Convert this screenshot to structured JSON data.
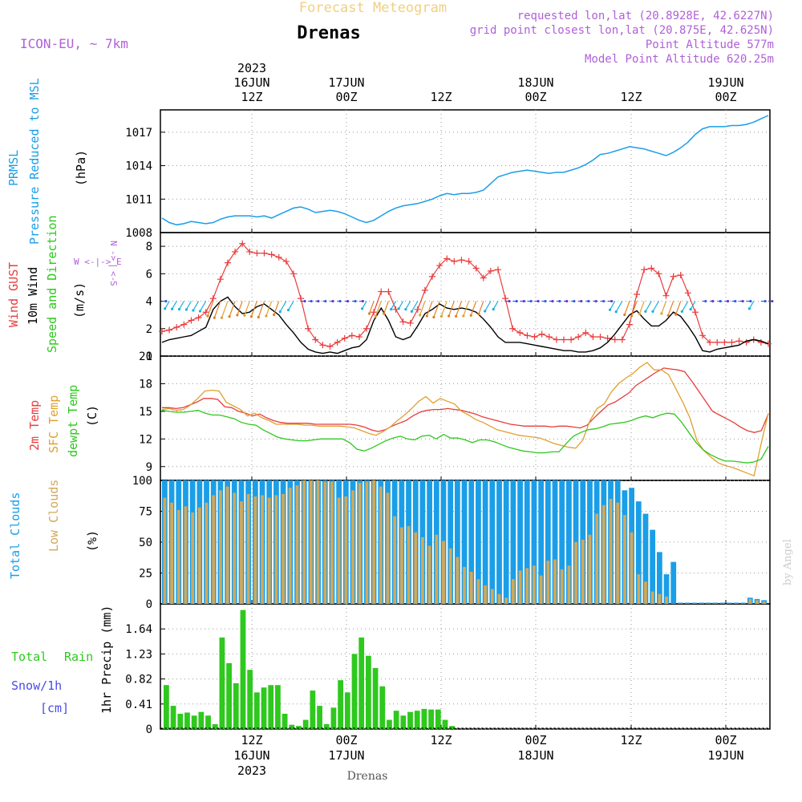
{
  "header": {
    "product": "Forecast Meteogram",
    "location": "Drenas",
    "model": "ICON-EU, ~ 7km",
    "requested": "requested lon,lat (20.8928E, 42.6227N)",
    "grid": "grid point closest lon,lat (20.875E, 42.625N)",
    "point_alt": "Point Altitude 577m",
    "model_alt": "Model Point Altitude 620.25m",
    "footer_location": "Drenas",
    "watermark": "by Angel"
  },
  "time_axis": {
    "top": [
      {
        "line1": "2023",
        "line2": "16JUN",
        "line3": "12Z"
      },
      {
        "line1": "",
        "line2": "17JUN",
        "line3": "00Z"
      },
      {
        "line1": "",
        "line2": "",
        "line3": "12Z"
      },
      {
        "line1": "",
        "line2": "18JUN",
        "line3": "00Z"
      },
      {
        "line1": "",
        "line2": "",
        "line3": "12Z"
      },
      {
        "line1": "",
        "line2": "19JUN",
        "line3": "00Z"
      }
    ],
    "bottom": [
      {
        "line1": "12Z",
        "line2": "16JUN",
        "line3": "2023"
      },
      {
        "line1": "00Z",
        "line2": "17JUN",
        "line3": ""
      },
      {
        "line1": "12Z",
        "line2": "",
        "line3": ""
      },
      {
        "line1": "00Z",
        "line2": "18JUN",
        "line3": ""
      },
      {
        "line1": "12Z",
        "line2": "",
        "line3": ""
      },
      {
        "line1": "00Z",
        "line2": "19JUN",
        "line3": ""
      }
    ]
  },
  "panel_labels": {
    "pressure": {
      "l1": "PRMSL",
      "l2": "Pressure Reduced to MSL",
      "unit": "(hPa)"
    },
    "wind": {
      "l1": "Wind GUST",
      "l2": "10m Wind",
      "l3": "Speed and Direction",
      "unit": "(m/s)",
      "compass_n": "N",
      "compass_s": "S",
      "compass_we": "W <-|-> E",
      "compass_v1": "<-",
      "compass_v2": "|",
      "compass_v3": "->"
    },
    "temp": {
      "l1": "2m Temp",
      "l2": "SFC Temp",
      "l3": "dewpt Temp",
      "unit": "(C)"
    },
    "clouds": {
      "l1": "Total Clouds",
      "l2": "Low Clouds",
      "unit": "(%)"
    },
    "precip": {
      "l1": "Total",
      "l1b": "Rain",
      "l2": "Snow/1h",
      "l3": "[cm]",
      "unit": "1hr Precip (mm)"
    }
  },
  "colors": {
    "pressure": "#1a9ee8",
    "gust": "#e83c3c",
    "wind": "#000000",
    "sfc": "#e0a030",
    "dewpt": "#2ec81e",
    "total_cloud": "#1a9ee8",
    "low_cloud": "#d2a85a",
    "precip": "#2ec81e",
    "purple": "#b060d8",
    "snow": "#4a4ae8"
  },
  "chart_data": [
    {
      "type": "line",
      "title": "PRMSL Pressure Reduced to MSL",
      "ylabel": "(hPa)",
      "ylim": [
        1008,
        1019
      ],
      "yticks": [
        1008,
        1011,
        1014,
        1017
      ],
      "series": [
        {
          "name": "PRMSL",
          "values": [
            1009.3,
            1008.9,
            1008.7,
            1008.8,
            1009.0,
            1008.9,
            1008.8,
            1008.9,
            1009.2,
            1009.4,
            1009.5,
            1009.5,
            1009.5,
            1009.4,
            1009.5,
            1009.3,
            1009.6,
            1009.9,
            1010.2,
            1010.3,
            1010.1,
            1009.8,
            1009.9,
            1010.0,
            1009.9,
            1009.7,
            1009.4,
            1009.1,
            1008.9,
            1009.1,
            1009.5,
            1009.9,
            1010.2,
            1010.4,
            1010.5,
            1010.6,
            1010.8,
            1011.0,
            1011.3,
            1011.5,
            1011.4,
            1011.5,
            1011.5,
            1011.6,
            1011.8,
            1012.4,
            1013.0,
            1013.2,
            1013.4,
            1013.5,
            1013.6,
            1013.5,
            1013.4,
            1013.3,
            1013.4,
            1013.4,
            1013.6,
            1013.8,
            1014.1,
            1014.5,
            1015.0,
            1015.1,
            1015.3,
            1015.5,
            1015.7,
            1015.6,
            1015.5,
            1015.3,
            1015.1,
            1014.9,
            1015.2,
            1015.6,
            1016.1,
            1016.8,
            1017.3,
            1017.5,
            1017.5,
            1017.5,
            1017.6,
            1017.6,
            1017.7,
            1017.9,
            1018.2,
            1018.5
          ]
        }
      ]
    },
    {
      "type": "line",
      "title": "Wind GUST / 10m Wind Speed and Direction",
      "ylabel": "(m/s)",
      "ylim": [
        0,
        9
      ],
      "yticks": [
        0,
        2,
        4,
        6,
        8
      ],
      "series": [
        {
          "name": "Wind GUST",
          "values": [
            1.8,
            1.9,
            2.1,
            2.3,
            2.6,
            2.8,
            3.2,
            4.2,
            5.6,
            6.8,
            7.6,
            8.2,
            7.6,
            7.5,
            7.5,
            7.4,
            7.2,
            6.9,
            6.0,
            4.2,
            2.0,
            1.2,
            0.8,
            0.7,
            1.0,
            1.3,
            1.5,
            1.4,
            2.0,
            3.2,
            4.7,
            4.7,
            3.4,
            2.5,
            2.4,
            3.4,
            4.8,
            5.8,
            6.6,
            7.1,
            6.9,
            7.0,
            6.9,
            6.4,
            5.7,
            6.2,
            6.3,
            4.2,
            2.0,
            1.7,
            1.5,
            1.4,
            1.6,
            1.4,
            1.2,
            1.2,
            1.2,
            1.4,
            1.7,
            1.4,
            1.4,
            1.3,
            1.2,
            1.2,
            2.3,
            4.5,
            6.3,
            6.4,
            6.0,
            4.4,
            5.8,
            5.9,
            4.6,
            3.2,
            1.5,
            1.0,
            1.0,
            1.0,
            1.0,
            1.1,
            1.0,
            1.2,
            1.0,
            0.9
          ]
        },
        {
          "name": "10m Wind",
          "values": [
            1.0,
            1.2,
            1.3,
            1.4,
            1.5,
            1.8,
            2.1,
            3.4,
            4.0,
            4.3,
            3.6,
            3.1,
            3.2,
            3.6,
            3.8,
            3.4,
            3.0,
            2.3,
            1.7,
            1.0,
            0.5,
            0.3,
            0.2,
            0.3,
            0.2,
            0.4,
            0.6,
            0.7,
            1.2,
            2.6,
            3.5,
            2.6,
            1.4,
            1.2,
            1.4,
            2.2,
            3.1,
            3.4,
            3.8,
            3.5,
            3.4,
            3.5,
            3.4,
            3.2,
            2.7,
            2.1,
            1.4,
            1.0,
            1.0,
            1.0,
            0.9,
            0.8,
            0.7,
            0.6,
            0.5,
            0.4,
            0.4,
            0.3,
            0.3,
            0.4,
            0.6,
            1.0,
            1.6,
            2.3,
            3.0,
            3.3,
            2.7,
            2.2,
            2.2,
            2.6,
            3.2,
            2.9,
            2.2,
            1.4,
            0.4,
            0.3,
            0.5,
            0.6,
            0.7,
            0.8,
            1.1,
            1.2,
            1.1,
            0.9
          ]
        }
      ]
    },
    {
      "type": "line",
      "title": "2m Temp / SFC Temp / dewpt Temp",
      "ylabel": "(C)",
      "ylim": [
        7.5,
        21
      ],
      "yticks": [
        9,
        12,
        15,
        18,
        21
      ],
      "series": [
        {
          "name": "2m Temp",
          "values": [
            15.4,
            15.4,
            15.3,
            15.4,
            15.7,
            16.0,
            16.4,
            16.4,
            16.3,
            15.5,
            15.4,
            15.0,
            14.8,
            14.5,
            14.7,
            14.3,
            14.0,
            13.8,
            13.7,
            13.7,
            13.7,
            13.7,
            13.6,
            13.6,
            13.6,
            13.6,
            13.6,
            13.6,
            13.5,
            13.3,
            13.0,
            12.8,
            13.0,
            13.4,
            13.7,
            14.0,
            14.5,
            14.9,
            15.1,
            15.2,
            15.2,
            15.3,
            15.2,
            15.1,
            14.9,
            14.7,
            14.4,
            14.2,
            14.0,
            13.8,
            13.6,
            13.5,
            13.4,
            13.4,
            13.4,
            13.4,
            13.3,
            13.4,
            13.4,
            13.3,
            13.2,
            13.5,
            14.3,
            15.0,
            15.7,
            16.0,
            16.5,
            17.0,
            17.8,
            18.3,
            18.8,
            19.3,
            19.7,
            19.6,
            19.5,
            19.3,
            18.3,
            17.2,
            16.1,
            15.0,
            14.6,
            14.2,
            13.8,
            13.3,
            12.9,
            12.7,
            12.9,
            14.7
          ]
        },
        {
          "name": "SFC Temp",
          "values": [
            15.2,
            15.3,
            15.1,
            15.2,
            15.7,
            16.4,
            17.2,
            17.3,
            17.2,
            16.0,
            15.6,
            15.2,
            14.5,
            14.8,
            14.3,
            14.0,
            13.6,
            13.6,
            13.6,
            13.6,
            13.5,
            13.5,
            13.4,
            13.4,
            13.4,
            13.4,
            13.3,
            13.2,
            12.9,
            12.6,
            12.4,
            12.8,
            13.3,
            14.0,
            14.6,
            15.3,
            16.1,
            16.6,
            15.9,
            16.4,
            16.1,
            15.8,
            15.0,
            14.6,
            14.1,
            13.8,
            13.4,
            13.0,
            12.8,
            12.6,
            12.4,
            12.3,
            12.2,
            12.1,
            11.8,
            11.5,
            11.3,
            11.1,
            11.0,
            11.9,
            14.0,
            15.3,
            15.8,
            17.1,
            18.0,
            18.6,
            19.1,
            19.8,
            20.3,
            19.5,
            19.5,
            19.0,
            17.5,
            16.0,
            14.3,
            11.8,
            10.7,
            10.0,
            9.4,
            9.1,
            8.9,
            8.6,
            8.3,
            8.0,
            11.5,
            14.8
          ]
        },
        {
          "name": "dewpt Temp",
          "values": [
            15.1,
            15.0,
            14.9,
            14.9,
            15.0,
            15.1,
            14.8,
            14.6,
            14.6,
            14.4,
            14.2,
            13.8,
            13.6,
            13.5,
            13.0,
            12.6,
            12.2,
            12.0,
            11.9,
            11.8,
            11.8,
            11.9,
            12.0,
            12.0,
            12.0,
            12.0,
            11.6,
            10.9,
            10.7,
            11.0,
            11.4,
            11.8,
            12.1,
            12.3,
            12.0,
            11.9,
            12.3,
            12.4,
            12.0,
            12.5,
            12.1,
            12.1,
            11.9,
            11.6,
            11.9,
            11.9,
            11.7,
            11.4,
            11.1,
            10.9,
            10.7,
            10.6,
            10.5,
            10.5,
            10.6,
            10.6,
            11.5,
            12.3,
            12.7,
            13.0,
            13.1,
            13.3,
            13.6,
            13.7,
            13.8,
            14.0,
            14.3,
            14.5,
            14.3,
            14.6,
            14.8,
            14.7,
            13.8,
            12.7,
            11.6,
            10.8,
            10.3,
            9.9,
            9.6,
            9.6,
            9.5,
            9.4,
            9.5,
            9.8,
            11.2
          ]
        }
      ]
    },
    {
      "type": "bar",
      "title": "Total Clouds / Low Clouds",
      "ylabel": "(%)",
      "ylim": [
        0,
        100
      ],
      "yticks": [
        0,
        25,
        50,
        75,
        100
      ],
      "series": [
        {
          "name": "Total Clouds",
          "values": [
            100,
            100,
            100,
            100,
            100,
            100,
            100,
            100,
            100,
            100,
            100,
            100,
            100,
            100,
            100,
            100,
            100,
            100,
            100,
            100,
            100,
            100,
            100,
            100,
            100,
            100,
            100,
            100,
            100,
            100,
            100,
            100,
            100,
            100,
            100,
            100,
            100,
            100,
            100,
            100,
            100,
            100,
            100,
            100,
            100,
            100,
            100,
            100,
            100,
            100,
            100,
            100,
            100,
            100,
            100,
            100,
            100,
            100,
            100,
            100,
            100,
            100,
            100,
            100,
            100,
            100,
            92,
            94,
            83,
            73,
            60,
            42,
            24,
            34,
            1,
            1,
            1,
            1,
            1,
            1,
            1,
            1,
            1,
            1,
            5,
            4,
            3
          ]
        },
        {
          "name": "Low Clouds",
          "values": [
            86,
            82,
            76,
            79,
            74,
            78,
            82,
            88,
            92,
            95,
            90,
            83,
            89,
            87,
            88,
            86,
            88,
            89,
            94,
            96,
            100,
            100,
            100,
            99,
            99,
            86,
            87,
            92,
            98,
            99,
            100,
            95,
            90,
            71,
            62,
            63,
            58,
            54,
            47,
            56,
            51,
            45,
            38,
            30,
            26,
            20,
            15,
            12,
            8,
            5,
            20,
            27,
            29,
            31,
            23,
            35,
            36,
            28,
            31,
            50,
            52,
            56,
            73,
            80,
            85,
            82,
            72,
            58,
            24,
            18,
            10,
            8,
            6,
            0,
            0,
            0,
            0,
            0,
            0,
            0,
            0,
            0,
            0,
            0,
            4,
            3,
            2
          ]
        }
      ]
    },
    {
      "type": "bar",
      "title": "1hr Precip",
      "ylabel": "1hr Precip (mm)",
      "ylim": [
        0,
        2.05
      ],
      "yticks": [
        0,
        0.41,
        0.82,
        1.23,
        1.64
      ],
      "series": [
        {
          "name": "Total Rain",
          "values": [
            0.72,
            0.38,
            0.25,
            0.27,
            0.22,
            0.28,
            0.22,
            0.08,
            1.5,
            1.08,
            0.75,
            1.95,
            0.97,
            0.6,
            0.68,
            0.72,
            0.72,
            0.25,
            0.07,
            0.05,
            0.15,
            0.63,
            0.38,
            0.08,
            0.35,
            0.8,
            0.6,
            1.23,
            1.5,
            1.2,
            1.0,
            0.7,
            0.15,
            0.3,
            0.22,
            0.28,
            0.3,
            0.33,
            0.32,
            0.32,
            0.15,
            0.05,
            0,
            0,
            0,
            0,
            0,
            0,
            0,
            0,
            0,
            0,
            0,
            0,
            0,
            0,
            0,
            0,
            0,
            0,
            0,
            0,
            0,
            0,
            0,
            0,
            0,
            0,
            0,
            0,
            0,
            0,
            0,
            0,
            0,
            0,
            0,
            0,
            0,
            0,
            0,
            0,
            0,
            0,
            0,
            0,
            0
          ]
        }
      ]
    }
  ]
}
